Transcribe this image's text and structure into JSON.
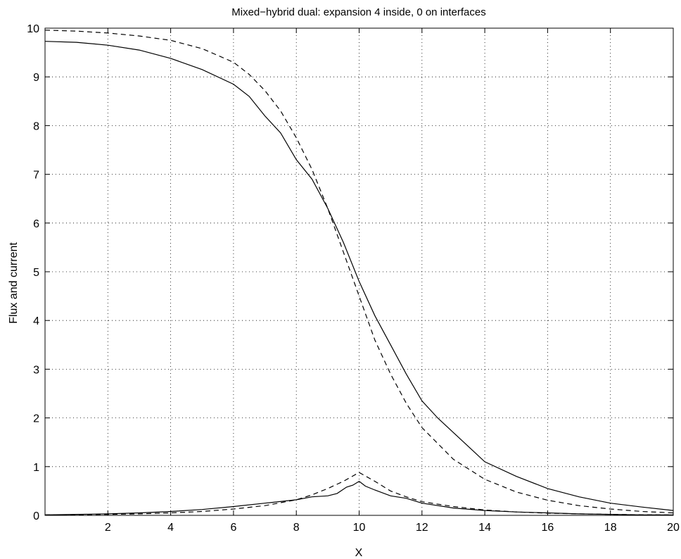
{
  "chart_data": {
    "type": "line",
    "title": "Mixed−hybrid dual: expansion 4 inside, 0 on interfaces",
    "xlabel": "X",
    "ylabel": "Flux and current",
    "xlim": [
      0,
      20
    ],
    "ylim": [
      0,
      10
    ],
    "x_ticks": [
      "2",
      "4",
      "6",
      "8",
      "10",
      "12",
      "14",
      "16",
      "18",
      "20"
    ],
    "y_ticks": [
      "0",
      "1",
      "2",
      "3",
      "4",
      "5",
      "6",
      "7",
      "8",
      "9",
      "10"
    ],
    "grid": true,
    "series": [
      {
        "style": "dashed",
        "x": [
          0,
          1,
          2,
          3,
          4,
          5,
          6,
          6.5,
          7,
          7.5,
          8,
          8.5,
          9,
          9.5,
          10,
          10.5,
          11,
          11.5,
          12,
          13,
          14,
          15,
          16,
          17,
          18,
          19,
          20
        ],
        "y": [
          9.96,
          9.94,
          9.9,
          9.84,
          9.75,
          9.58,
          9.3,
          9.05,
          8.72,
          8.3,
          7.75,
          7.1,
          6.3,
          5.4,
          4.5,
          3.6,
          2.9,
          2.3,
          1.8,
          1.15,
          0.74,
          0.48,
          0.31,
          0.2,
          0.13,
          0.08,
          0.05
        ]
      },
      {
        "style": "solid",
        "x": [
          0,
          1,
          2,
          3,
          4,
          5,
          6,
          6.5,
          7,
          7.5,
          8,
          8.5,
          9,
          9.5,
          10,
          10.5,
          11,
          11.5,
          12,
          12.5,
          13,
          14,
          15,
          16,
          17,
          18,
          19,
          20
        ],
        "y": [
          9.73,
          9.71,
          9.65,
          9.55,
          9.38,
          9.15,
          8.85,
          8.6,
          8.2,
          7.85,
          7.3,
          6.9,
          6.3,
          5.6,
          4.8,
          4.1,
          3.5,
          2.9,
          2.35,
          2.0,
          1.7,
          1.1,
          0.8,
          0.55,
          0.38,
          0.25,
          0.17,
          0.1
        ]
      },
      {
        "style": "dashed",
        "x": [
          0,
          1,
          2,
          3,
          4,
          5,
          6,
          7,
          8,
          8.5,
          9,
          9.5,
          10,
          10.5,
          11,
          11.5,
          12,
          13,
          14,
          15,
          16,
          17,
          18,
          19,
          20
        ],
        "y": [
          0.01,
          0.015,
          0.02,
          0.03,
          0.05,
          0.08,
          0.13,
          0.2,
          0.32,
          0.42,
          0.55,
          0.7,
          0.88,
          0.7,
          0.5,
          0.38,
          0.28,
          0.18,
          0.11,
          0.07,
          0.045,
          0.03,
          0.02,
          0.012,
          0.008
        ]
      },
      {
        "style": "solid",
        "x": [
          0,
          1,
          2,
          3,
          4,
          5,
          6,
          7,
          8,
          8.5,
          9,
          9.3,
          9.6,
          9.8,
          10,
          10.2,
          10.5,
          11,
          11.5,
          12,
          13,
          14,
          15,
          16,
          17,
          18,
          19,
          20
        ],
        "y": [
          0.01,
          0.02,
          0.03,
          0.05,
          0.08,
          0.12,
          0.18,
          0.25,
          0.32,
          0.38,
          0.4,
          0.45,
          0.58,
          0.62,
          0.7,
          0.6,
          0.52,
          0.4,
          0.35,
          0.25,
          0.15,
          0.1,
          0.07,
          0.05,
          0.03,
          0.02,
          0.01,
          0.01
        ]
      }
    ]
  }
}
